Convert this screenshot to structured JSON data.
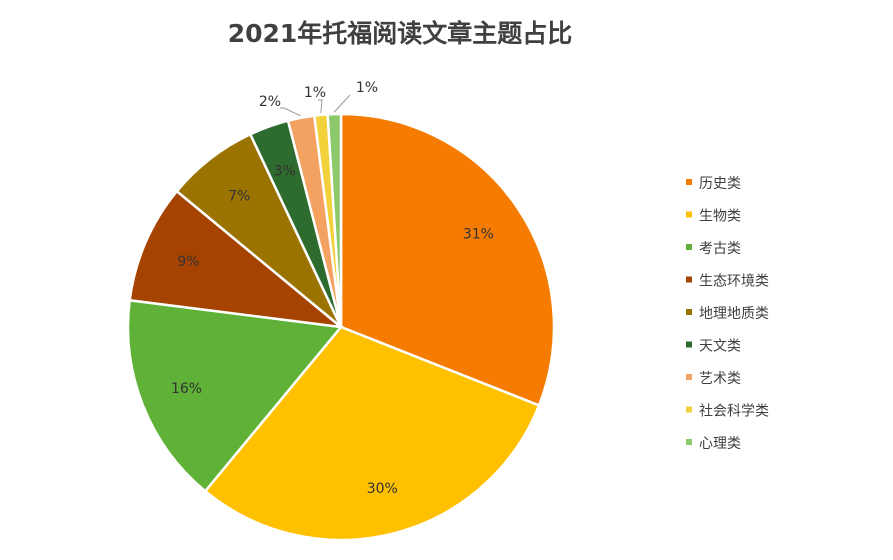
{
  "chart_data": {
    "type": "pie",
    "title": "2021年托福阅读文章主题占比",
    "categories": [
      "历史类",
      "生物类",
      "考古类",
      "生态环境类",
      "地理地质类",
      "天文类",
      "艺术类",
      "社会科学类",
      "心理类"
    ],
    "values": [
      31,
      30,
      16,
      9,
      7,
      3,
      2,
      1,
      1
    ],
    "labels": [
      "31%",
      "30%",
      "16%",
      "9%",
      "7%",
      "3%",
      "2%",
      "1%",
      "1%"
    ],
    "colors": [
      "#F57C00",
      "#FFC000",
      "#5FB137",
      "#A64300",
      "#9A7300",
      "#2E6B2E",
      "#F4A261",
      "#F2D13A",
      "#8BC96A"
    ],
    "legend_position": "right"
  }
}
